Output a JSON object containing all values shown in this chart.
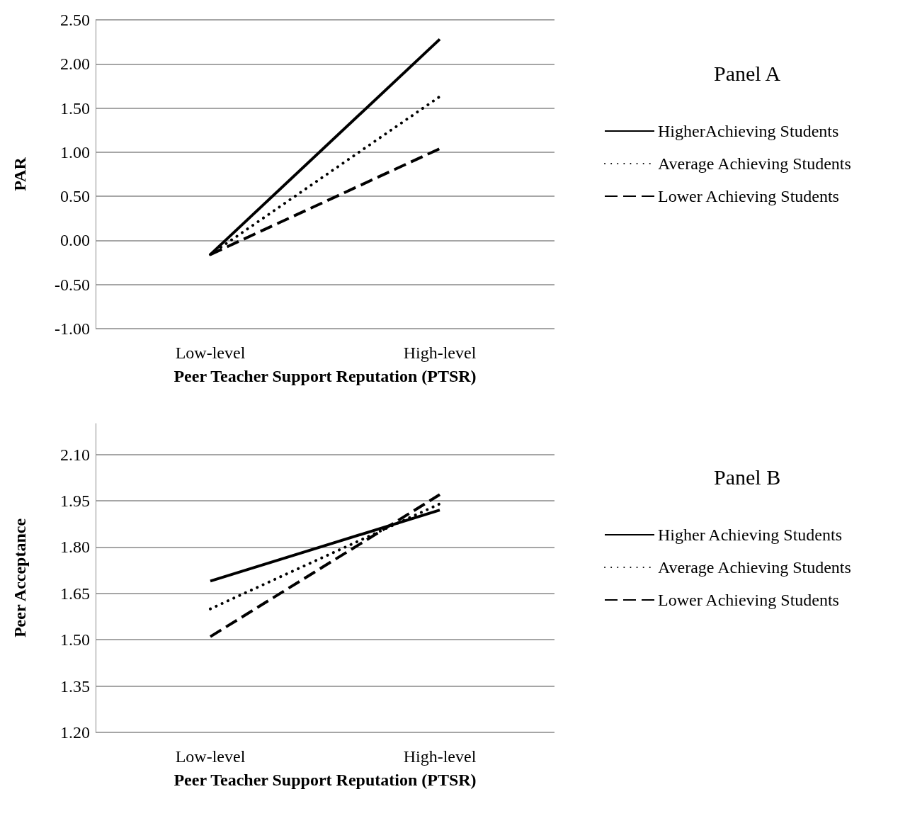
{
  "chart_data": [
    {
      "type": "line",
      "legend_title": "Panel A",
      "xlabel": "Peer Teacher Support Reputation (PTSR)",
      "ylabel": "PAR",
      "categories": [
        "Low-level",
        "High-level"
      ],
      "ylim": [
        -1,
        2.5
      ],
      "yticks": [
        {
          "value": -1,
          "label": "-1.00"
        },
        {
          "value": -0.5,
          "label": "-0.50"
        },
        {
          "value": 0,
          "label": "0.00"
        },
        {
          "value": 0.5,
          "label": "0.50"
        },
        {
          "value": 1,
          "label": "1.00"
        },
        {
          "value": 1.5,
          "label": "1.50"
        },
        {
          "value": 2,
          "label": "2.00"
        },
        {
          "value": 2.5,
          "label": "2.50"
        }
      ],
      "grid": "y",
      "legend": "right",
      "marker": "none",
      "series": [
        {
          "name": "HigherAchieving Students",
          "color": "#000000",
          "line_style": "solid",
          "values": [
            -0.16,
            2.28
          ]
        },
        {
          "name": "Average Achieving Students",
          "color": "#000000",
          "line_style": "dotted",
          "values": [
            -0.16,
            1.63
          ]
        },
        {
          "name": "Lower Achieving Students",
          "color": "#000000",
          "line_style": "dashed",
          "values": [
            -0.16,
            1.04
          ]
        }
      ]
    },
    {
      "type": "line",
      "legend_title": "Panel B",
      "xlabel": "Peer Teacher Support Reputation (PTSR)",
      "ylabel": "Peer Acceptance",
      "categories": [
        "Low-level",
        "High-level"
      ],
      "ylim": [
        1.2,
        2.2
      ],
      "yticks": [
        {
          "value": 1.2,
          "label": "1.20"
        },
        {
          "value": 1.35,
          "label": "1.35"
        },
        {
          "value": 1.5,
          "label": "1.50"
        },
        {
          "value": 1.65,
          "label": "1.65"
        },
        {
          "value": 1.8,
          "label": "1.80"
        },
        {
          "value": 1.95,
          "label": "1.95"
        },
        {
          "value": 2.1,
          "label": "2.10"
        }
      ],
      "grid": "y",
      "legend": "right",
      "marker": "none",
      "series": [
        {
          "name": "Higher Achieving Students",
          "color": "#000000",
          "line_style": "solid",
          "values": [
            1.69,
            1.92
          ]
        },
        {
          "name": "Average Achieving Students",
          "color": "#000000",
          "line_style": "dotted",
          "values": [
            1.6,
            1.94
          ]
        },
        {
          "name": "Lower Achieving Students",
          "color": "#000000",
          "line_style": "dashed",
          "values": [
            1.51,
            1.97
          ]
        }
      ]
    }
  ]
}
